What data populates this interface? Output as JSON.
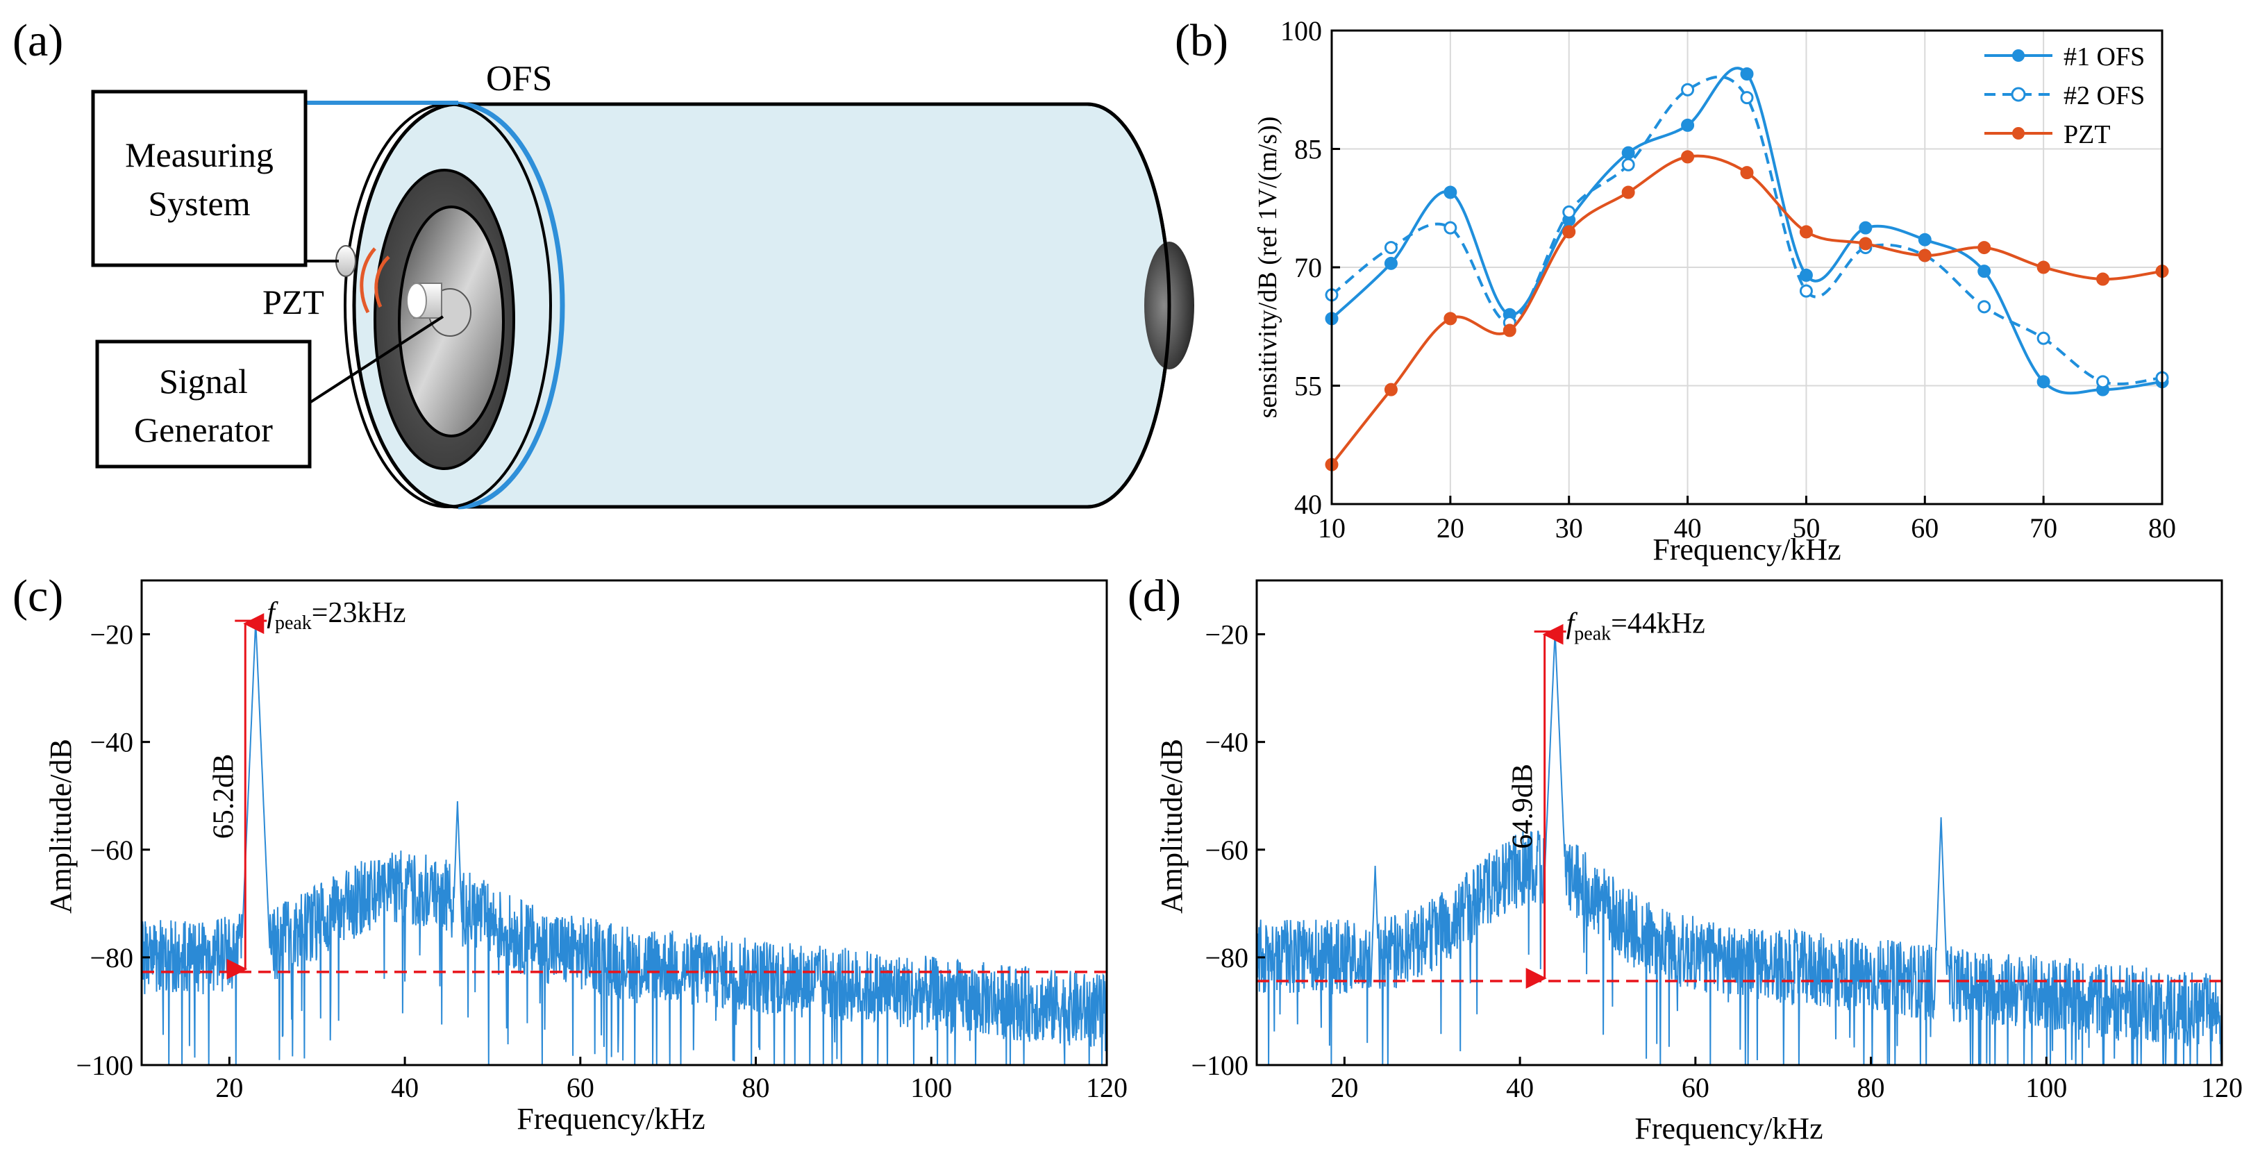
{
  "panel_labels": [
    "(a)",
    "(b)",
    "(c)",
    "(d)"
  ],
  "schematic": {
    "fiber_label": "OFS",
    "measuring_system": [
      "Measuring",
      "System"
    ],
    "pzt_label": "PZT",
    "signal_generator": [
      "Signal",
      "Generator"
    ],
    "colors": {
      "cylinder": "#dcedf3",
      "fiber": "#2e8fd9",
      "pzt_wave": "#e45a2a",
      "outline": "#000000"
    }
  },
  "chart_data": [
    {
      "id": "b",
      "type": "line",
      "title": "",
      "xlabel": "Frequency/kHz",
      "ylabel": "sensitivity/dB (ref 1V/(m/s))",
      "xlim": [
        10,
        80
      ],
      "ylim": [
        40,
        100
      ],
      "xticks": [
        10,
        20,
        30,
        40,
        50,
        60,
        70,
        80
      ],
      "yticks": [
        40,
        55,
        70,
        85,
        100
      ],
      "grid": true,
      "legend": "top-right",
      "x": [
        10,
        15,
        20,
        25,
        30,
        35,
        40,
        45,
        50,
        55,
        60,
        65,
        70,
        75,
        80
      ],
      "series": [
        {
          "name": "#1 OFS",
          "color": "#1f8fdc",
          "style": "solid",
          "marker": "filled",
          "values": [
            63.5,
            70.5,
            79.5,
            64.0,
            76.0,
            84.5,
            88.0,
            94.5,
            69.0,
            75.0,
            73.5,
            69.5,
            55.5,
            54.5,
            55.5
          ]
        },
        {
          "name": "#2 OFS",
          "color": "#1f8fdc",
          "style": "dashed",
          "marker": "open",
          "values": [
            66.5,
            72.5,
            75.0,
            63.0,
            77.0,
            83.0,
            92.5,
            91.5,
            67.0,
            72.5,
            71.5,
            65.0,
            61.0,
            55.5,
            56.0
          ]
        },
        {
          "name": "PZT",
          "color": "#e0521e",
          "style": "solid",
          "marker": "filled",
          "values": [
            45.0,
            54.5,
            63.5,
            62.0,
            74.5,
            79.5,
            84.0,
            82.0,
            74.5,
            73.0,
            71.5,
            72.5,
            70.0,
            68.5,
            69.5
          ]
        }
      ]
    },
    {
      "id": "c",
      "type": "line",
      "title": "",
      "xlabel": "Frequency/kHz",
      "ylabel": "Amplitude/dB",
      "xlim": [
        10,
        120
      ],
      "ylim": [
        -100,
        -10
      ],
      "xticks": [
        20,
        40,
        60,
        80,
        100,
        120
      ],
      "yticks": [
        -100,
        -80,
        -60,
        -40,
        -20
      ],
      "tick_labels_x": [
        "20",
        "40",
        "60",
        "80",
        "100",
        "120"
      ],
      "tick_labels_y": [
        "−100",
        "−80",
        "−60",
        "−40",
        "−20"
      ],
      "series_color": "#2b8ad6",
      "peak_frequency": 23,
      "peak_value": -17.5,
      "noise_floor": -82.7,
      "peak_label_prefix": "f",
      "peak_label_sub": "peak",
      "peak_label_value": "=23kHz",
      "difference_label": "65.2dB",
      "secondary_peaks": [
        {
          "x": 46,
          "y": -51
        },
        {
          "x": 40.5,
          "y": -62
        }
      ],
      "hump": {
        "center": 40,
        "width": 12,
        "height": 13
      }
    },
    {
      "id": "d",
      "type": "line",
      "title": "",
      "xlabel": "Frequency/kHz",
      "ylabel": "Amplitude/dB",
      "xlim": [
        10,
        120
      ],
      "ylim": [
        -100,
        -10
      ],
      "xticks": [
        20,
        40,
        60,
        80,
        100,
        120
      ],
      "yticks": [
        -100,
        -80,
        -60,
        -40,
        -20
      ],
      "tick_labels_x": [
        "20",
        "40",
        "60",
        "80",
        "100",
        "120"
      ],
      "tick_labels_y": [
        "−100",
        "−80",
        "−60",
        "−40",
        "−20"
      ],
      "series_color": "#2b8ad6",
      "peak_frequency": 44,
      "peak_value": -19.5,
      "noise_floor": -84.4,
      "peak_label_prefix": "f",
      "peak_label_sub": "peak",
      "peak_label_value": "=44kHz",
      "difference_label": "64.9dB",
      "secondary_peaks": [
        {
          "x": 88,
          "y": -54
        },
        {
          "x": 23.5,
          "y": -63
        }
      ],
      "hump": {
        "center": 42,
        "width": 10,
        "height": 17
      }
    }
  ]
}
